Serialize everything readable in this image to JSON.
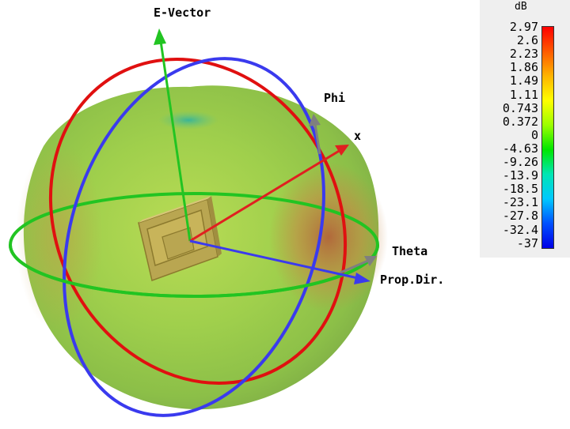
{
  "labels": {
    "e_vector": "E-Vector",
    "phi": "Phi",
    "x": "x",
    "theta": "Theta",
    "prop_dir": "Prop.Dir."
  },
  "legend": {
    "unit": "dB",
    "ticks": [
      "2.97",
      "2.6",
      "2.23",
      "1.86",
      "1.49",
      "1.11",
      "0.743",
      "0.372",
      "0",
      "-4.63",
      "-9.26",
      "-13.9",
      "-18.5",
      "-23.1",
      "-27.8",
      "-32.4",
      "-37"
    ],
    "colors": [
      "#ff0000",
      "#ff5a00",
      "#ffb400",
      "#ffff00",
      "#9bff00",
      "#00e600",
      "#00e6b4",
      "#00c8ff",
      "#0050ff",
      "#0000e6"
    ]
  },
  "colors": {
    "e_vector_axis": "#22c422",
    "phi_axis": "#7f7f7f",
    "x_axis": "#e02020",
    "theta_axis": "#7f7f7f",
    "prop_dir_axis": "#3a3aee",
    "ring_red": "#e01010",
    "ring_blue": "#3a3aee",
    "ring_green": "#22c422",
    "pattern_surface": "#a6d24a",
    "pattern_hot": "#c77a38",
    "antenna": "#c8b45a"
  }
}
